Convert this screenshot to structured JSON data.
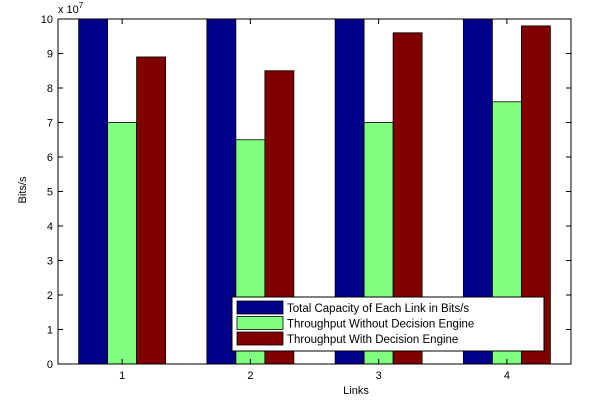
{
  "chart_data": {
    "type": "bar",
    "title": "",
    "xlabel": "Links",
    "ylabel": "Bits/s",
    "y_exponent_label": "x 10",
    "y_exponent_power": "7",
    "categories": [
      "1",
      "2",
      "3",
      "4"
    ],
    "ylim": [
      0,
      10
    ],
    "yticks": [
      "0",
      "1",
      "2",
      "3",
      "4",
      "5",
      "6",
      "7",
      "8",
      "9",
      "10"
    ],
    "grid": false,
    "legend_position": "bottom-right",
    "series": [
      {
        "name": "Total Capacity of Each Link in Bits/s",
        "color": "#00008b",
        "values": [
          10,
          10,
          10,
          10
        ]
      },
      {
        "name": "Throughput Without Decision Engine",
        "color": "#80ff80",
        "values": [
          7.0,
          6.5,
          7.0,
          7.6
        ]
      },
      {
        "name": "Throughput With Decision Engine",
        "color": "#800000",
        "values": [
          8.9,
          8.5,
          9.6,
          9.8
        ]
      }
    ]
  }
}
